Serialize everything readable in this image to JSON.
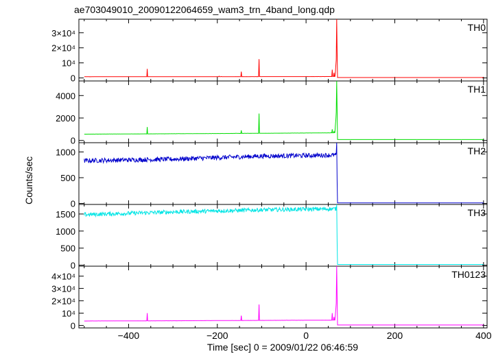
{
  "title": "ae703049010_20090122064659_wam3_trn_4band_long.qdp",
  "xlabel": "Time [sec] 0 = 2009/01/22 06:46:59",
  "ylabel": "Counts/sec",
  "chart_data": [
    {
      "type": "line",
      "name": "TH0",
      "color": "#ff0000",
      "xlim": [
        -512,
        408
      ],
      "ylim": [
        -2000,
        39000
      ],
      "yticks": [
        {
          "v": 0,
          "t": "0"
        },
        {
          "v": 10000,
          "t": "10⁴"
        },
        {
          "v": 20000,
          "t": "2×10⁴"
        },
        {
          "v": 30000,
          "t": "3×10⁴"
        }
      ],
      "xticks": [
        -400,
        -200,
        0,
        200,
        400
      ],
      "baseline": [
        [
          -500,
          800
        ],
        [
          -300,
          850
        ],
        [
          -100,
          900
        ],
        [
          60,
          950
        ],
        [
          66,
          1000
        ]
      ],
      "spikes": [
        [
          -358,
          6000
        ],
        [
          -196,
          1200
        ],
        [
          -191,
          1000
        ],
        [
          -146,
          4200
        ],
        [
          -106,
          12500
        ],
        [
          59,
          5500
        ],
        [
          63,
          3500
        ],
        [
          66,
          3000
        ],
        [
          67,
          8000
        ],
        [
          68,
          12000
        ],
        [
          69,
          39000
        ],
        [
          70,
          18000
        ]
      ],
      "post": [
        [
          71,
          300
        ],
        [
          400,
          300
        ]
      ]
    },
    {
      "type": "line",
      "name": "TH1",
      "color": "#00dd00",
      "xlim": [
        -512,
        408
      ],
      "ylim": [
        -200,
        5300
      ],
      "yticks": [
        {
          "v": 0,
          "t": "0"
        },
        {
          "v": 2000,
          "t": "2000"
        },
        {
          "v": 4000,
          "t": "4000"
        }
      ],
      "xticks": [
        -400,
        -200,
        0,
        200,
        400
      ],
      "baseline": [
        [
          -500,
          560
        ],
        [
          -300,
          600
        ],
        [
          -100,
          640
        ],
        [
          60,
          680
        ],
        [
          66,
          700
        ]
      ],
      "spikes": [
        [
          -358,
          1200
        ],
        [
          -146,
          900
        ],
        [
          -106,
          2400
        ],
        [
          59,
          1000
        ],
        [
          63,
          800
        ],
        [
          66,
          1300
        ],
        [
          67,
          1800
        ],
        [
          68,
          2500
        ],
        [
          69,
          5300
        ],
        [
          70,
          2800
        ]
      ],
      "post": [
        [
          71,
          80
        ],
        [
          400,
          80
        ]
      ]
    },
    {
      "type": "line",
      "name": "TH2",
      "color": "#0000cc",
      "xlim": [
        -512,
        408
      ],
      "ylim": [
        -20,
        1180
      ],
      "yticks": [
        {
          "v": 0,
          "t": "0"
        },
        {
          "v": 500,
          "t": "500"
        },
        {
          "v": 1000,
          "t": "1000"
        }
      ],
      "xticks": [
        -400,
        -200,
        0,
        200,
        400
      ],
      "baseline": [
        [
          -500,
          830
        ],
        [
          -300,
          860
        ],
        [
          -100,
          920
        ],
        [
          0,
          930
        ],
        [
          66,
          940
        ]
      ],
      "noise": 45,
      "spikes": [
        [
          69,
          1180
        ],
        [
          70,
          450
        ]
      ],
      "post": [
        [
          71,
          10
        ],
        [
          400,
          10
        ]
      ]
    },
    {
      "type": "line",
      "name": "TH3",
      "color": "#00e5e5",
      "xlim": [
        -512,
        408
      ],
      "ylim": [
        -30,
        1780
      ],
      "yticks": [
        {
          "v": 0,
          "t": "0"
        },
        {
          "v": 500,
          "t": "500"
        },
        {
          "v": 1000,
          "t": "1000"
        },
        {
          "v": 1500,
          "t": "1500"
        }
      ],
      "xticks": [
        -400,
        -200,
        0,
        200,
        400
      ],
      "baseline": [
        [
          -500,
          1480
        ],
        [
          -300,
          1560
        ],
        [
          -100,
          1620
        ],
        [
          0,
          1640
        ],
        [
          66,
          1650
        ]
      ],
      "noise": 60,
      "spikes": [
        [
          69,
          1780
        ],
        [
          70,
          700
        ]
      ],
      "post": [
        [
          71,
          20
        ],
        [
          400,
          20
        ]
      ]
    },
    {
      "type": "line",
      "name": "TH0123",
      "color": "#ff00ff",
      "xlim": [
        -512,
        408
      ],
      "ylim": [
        -2000,
        48000
      ],
      "yticks": [
        {
          "v": 0,
          "t": "0"
        },
        {
          "v": 10000,
          "t": "10⁴"
        },
        {
          "v": 20000,
          "t": "2×10⁴"
        },
        {
          "v": 30000,
          "t": "3×10⁴"
        },
        {
          "v": 40000,
          "t": "4×10⁴"
        }
      ],
      "xticks": [
        -400,
        -200,
        0,
        200,
        400
      ],
      "baseline": [
        [
          -500,
          3600
        ],
        [
          -300,
          3800
        ],
        [
          -100,
          4100
        ],
        [
          60,
          4300
        ],
        [
          66,
          4400
        ]
      ],
      "spikes": [
        [
          -358,
          10000
        ],
        [
          -146,
          8000
        ],
        [
          -106,
          17000
        ],
        [
          59,
          10000
        ],
        [
          63,
          7000
        ],
        [
          66,
          8000
        ],
        [
          67,
          13000
        ],
        [
          68,
          18000
        ],
        [
          69,
          48000
        ],
        [
          70,
          24000
        ]
      ],
      "post": [
        [
          71,
          400
        ],
        [
          400,
          400
        ]
      ]
    }
  ]
}
